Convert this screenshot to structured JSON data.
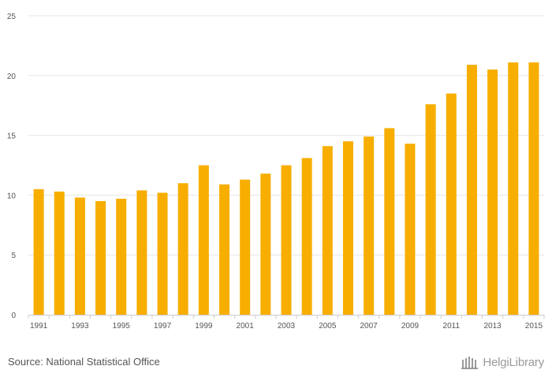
{
  "chart_data": {
    "type": "bar",
    "title": "",
    "xlabel": "",
    "ylabel": "",
    "categories": [
      "1991",
      "1992",
      "1993",
      "1994",
      "1995",
      "1996",
      "1997",
      "1998",
      "1999",
      "2000",
      "2001",
      "2002",
      "2003",
      "2004",
      "2005",
      "2006",
      "2007",
      "2008",
      "2009",
      "2010",
      "2011",
      "2012",
      "2013",
      "2014",
      "2015"
    ],
    "x_tick_labels": [
      "1991",
      "1993",
      "1995",
      "1997",
      "1999",
      "2001",
      "2003",
      "2005",
      "2007",
      "2009",
      "2011",
      "2013",
      "2015"
    ],
    "values": [
      10.5,
      10.3,
      9.8,
      9.5,
      9.7,
      10.4,
      10.2,
      11.0,
      12.5,
      10.9,
      11.3,
      11.8,
      12.5,
      13.1,
      14.1,
      14.5,
      14.9,
      15.6,
      14.3,
      17.6,
      18.5,
      20.9,
      20.5,
      21.1,
      21.1
    ],
    "ylim": [
      0,
      25
    ],
    "y_ticks": [
      0,
      5,
      10,
      15,
      20,
      25
    ],
    "grid": true,
    "bar_color": "#F7AE00",
    "grid_color": "#E6E6E6"
  },
  "footer": {
    "source": "Source: National Statistical Office",
    "brand": "HelgiLibrary"
  }
}
